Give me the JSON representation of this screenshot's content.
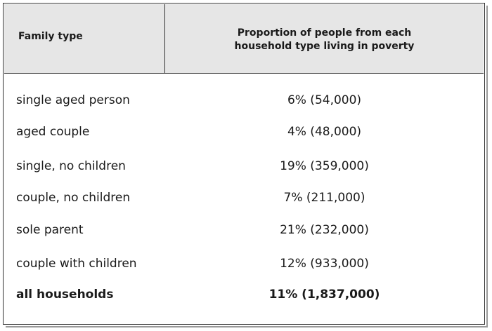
{
  "chart_data": {
    "type": "table",
    "columns": [
      "Family type",
      "Proportion of people from each household type living in poverty"
    ],
    "rows": [
      {
        "family_type": "single aged person",
        "value": "6% (54,000)",
        "percent": 6,
        "people": 54000
      },
      {
        "family_type": "aged couple",
        "value": "4% (48,000)",
        "percent": 4,
        "people": 48000
      },
      {
        "family_type": "single, no children",
        "value": "19% (359,000)",
        "percent": 19,
        "people": 359000
      },
      {
        "family_type": "couple, no children",
        "value": "7% (211,000)",
        "percent": 7,
        "people": 211000
      },
      {
        "family_type": "sole parent",
        "value": "21% (232,000)",
        "percent": 21,
        "people": 232000
      },
      {
        "family_type": "couple with children",
        "value": "12% (933,000)",
        "percent": 12,
        "people": 933000
      },
      {
        "family_type": "all households",
        "value": "11% (1,837,000)",
        "percent": 11,
        "people": 1837000
      }
    ]
  },
  "table": {
    "header_col1": "Family type",
    "header_col2_line1": "Proportion of people from each",
    "header_col2_line2": "household type living in poverty"
  },
  "colors": {
    "header_background": "#e6e6e6",
    "border": "#333333"
  }
}
